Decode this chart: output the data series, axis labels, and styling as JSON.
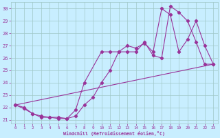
{
  "xlabel": "Windchill (Refroidissement éolien,°C)",
  "xlim": [
    -0.5,
    23.5
  ],
  "ylim": [
    20.7,
    30.5
  ],
  "yticks": [
    21,
    22,
    23,
    24,
    25,
    26,
    27,
    28,
    29,
    30
  ],
  "xticks": [
    0,
    1,
    2,
    3,
    4,
    5,
    6,
    7,
    8,
    9,
    10,
    11,
    12,
    13,
    14,
    15,
    16,
    17,
    18,
    19,
    20,
    21,
    22,
    23
  ],
  "line_color": "#993399",
  "bg_color": "#c8eeff",
  "grid_color": "#a0c8c8",
  "line1_x": [
    0,
    1,
    2,
    3,
    4,
    5,
    6,
    7,
    8,
    10,
    11,
    12,
    13,
    14,
    15,
    16,
    17,
    18,
    19,
    20,
    21,
    22,
    23
  ],
  "line1_y": [
    22.2,
    22.0,
    21.5,
    21.2,
    21.2,
    21.2,
    21.1,
    21.8,
    24.0,
    26.5,
    26.5,
    26.5,
    27.0,
    26.8,
    27.2,
    26.5,
    30.0,
    29.5,
    26.5,
    27.5,
    29.0,
    27.0,
    25.5
  ],
  "line2_x": [
    0,
    1,
    2,
    3,
    4,
    5,
    6,
    7,
    8,
    9,
    10,
    11,
    12,
    13,
    14,
    15,
    16,
    17,
    18,
    19,
    20,
    21,
    22,
    23
  ],
  "line2_y": [
    22.2,
    21.9,
    21.5,
    21.3,
    21.2,
    21.1,
    21.1,
    21.3,
    22.2,
    22.8,
    24.0,
    25.0,
    26.5,
    26.5,
    26.5,
    27.3,
    26.2,
    26.0,
    30.2,
    29.7,
    29.0,
    27.3,
    25.5,
    25.5
  ],
  "line3_x": [
    0,
    23
  ],
  "line3_y": [
    22.2,
    25.5
  ]
}
